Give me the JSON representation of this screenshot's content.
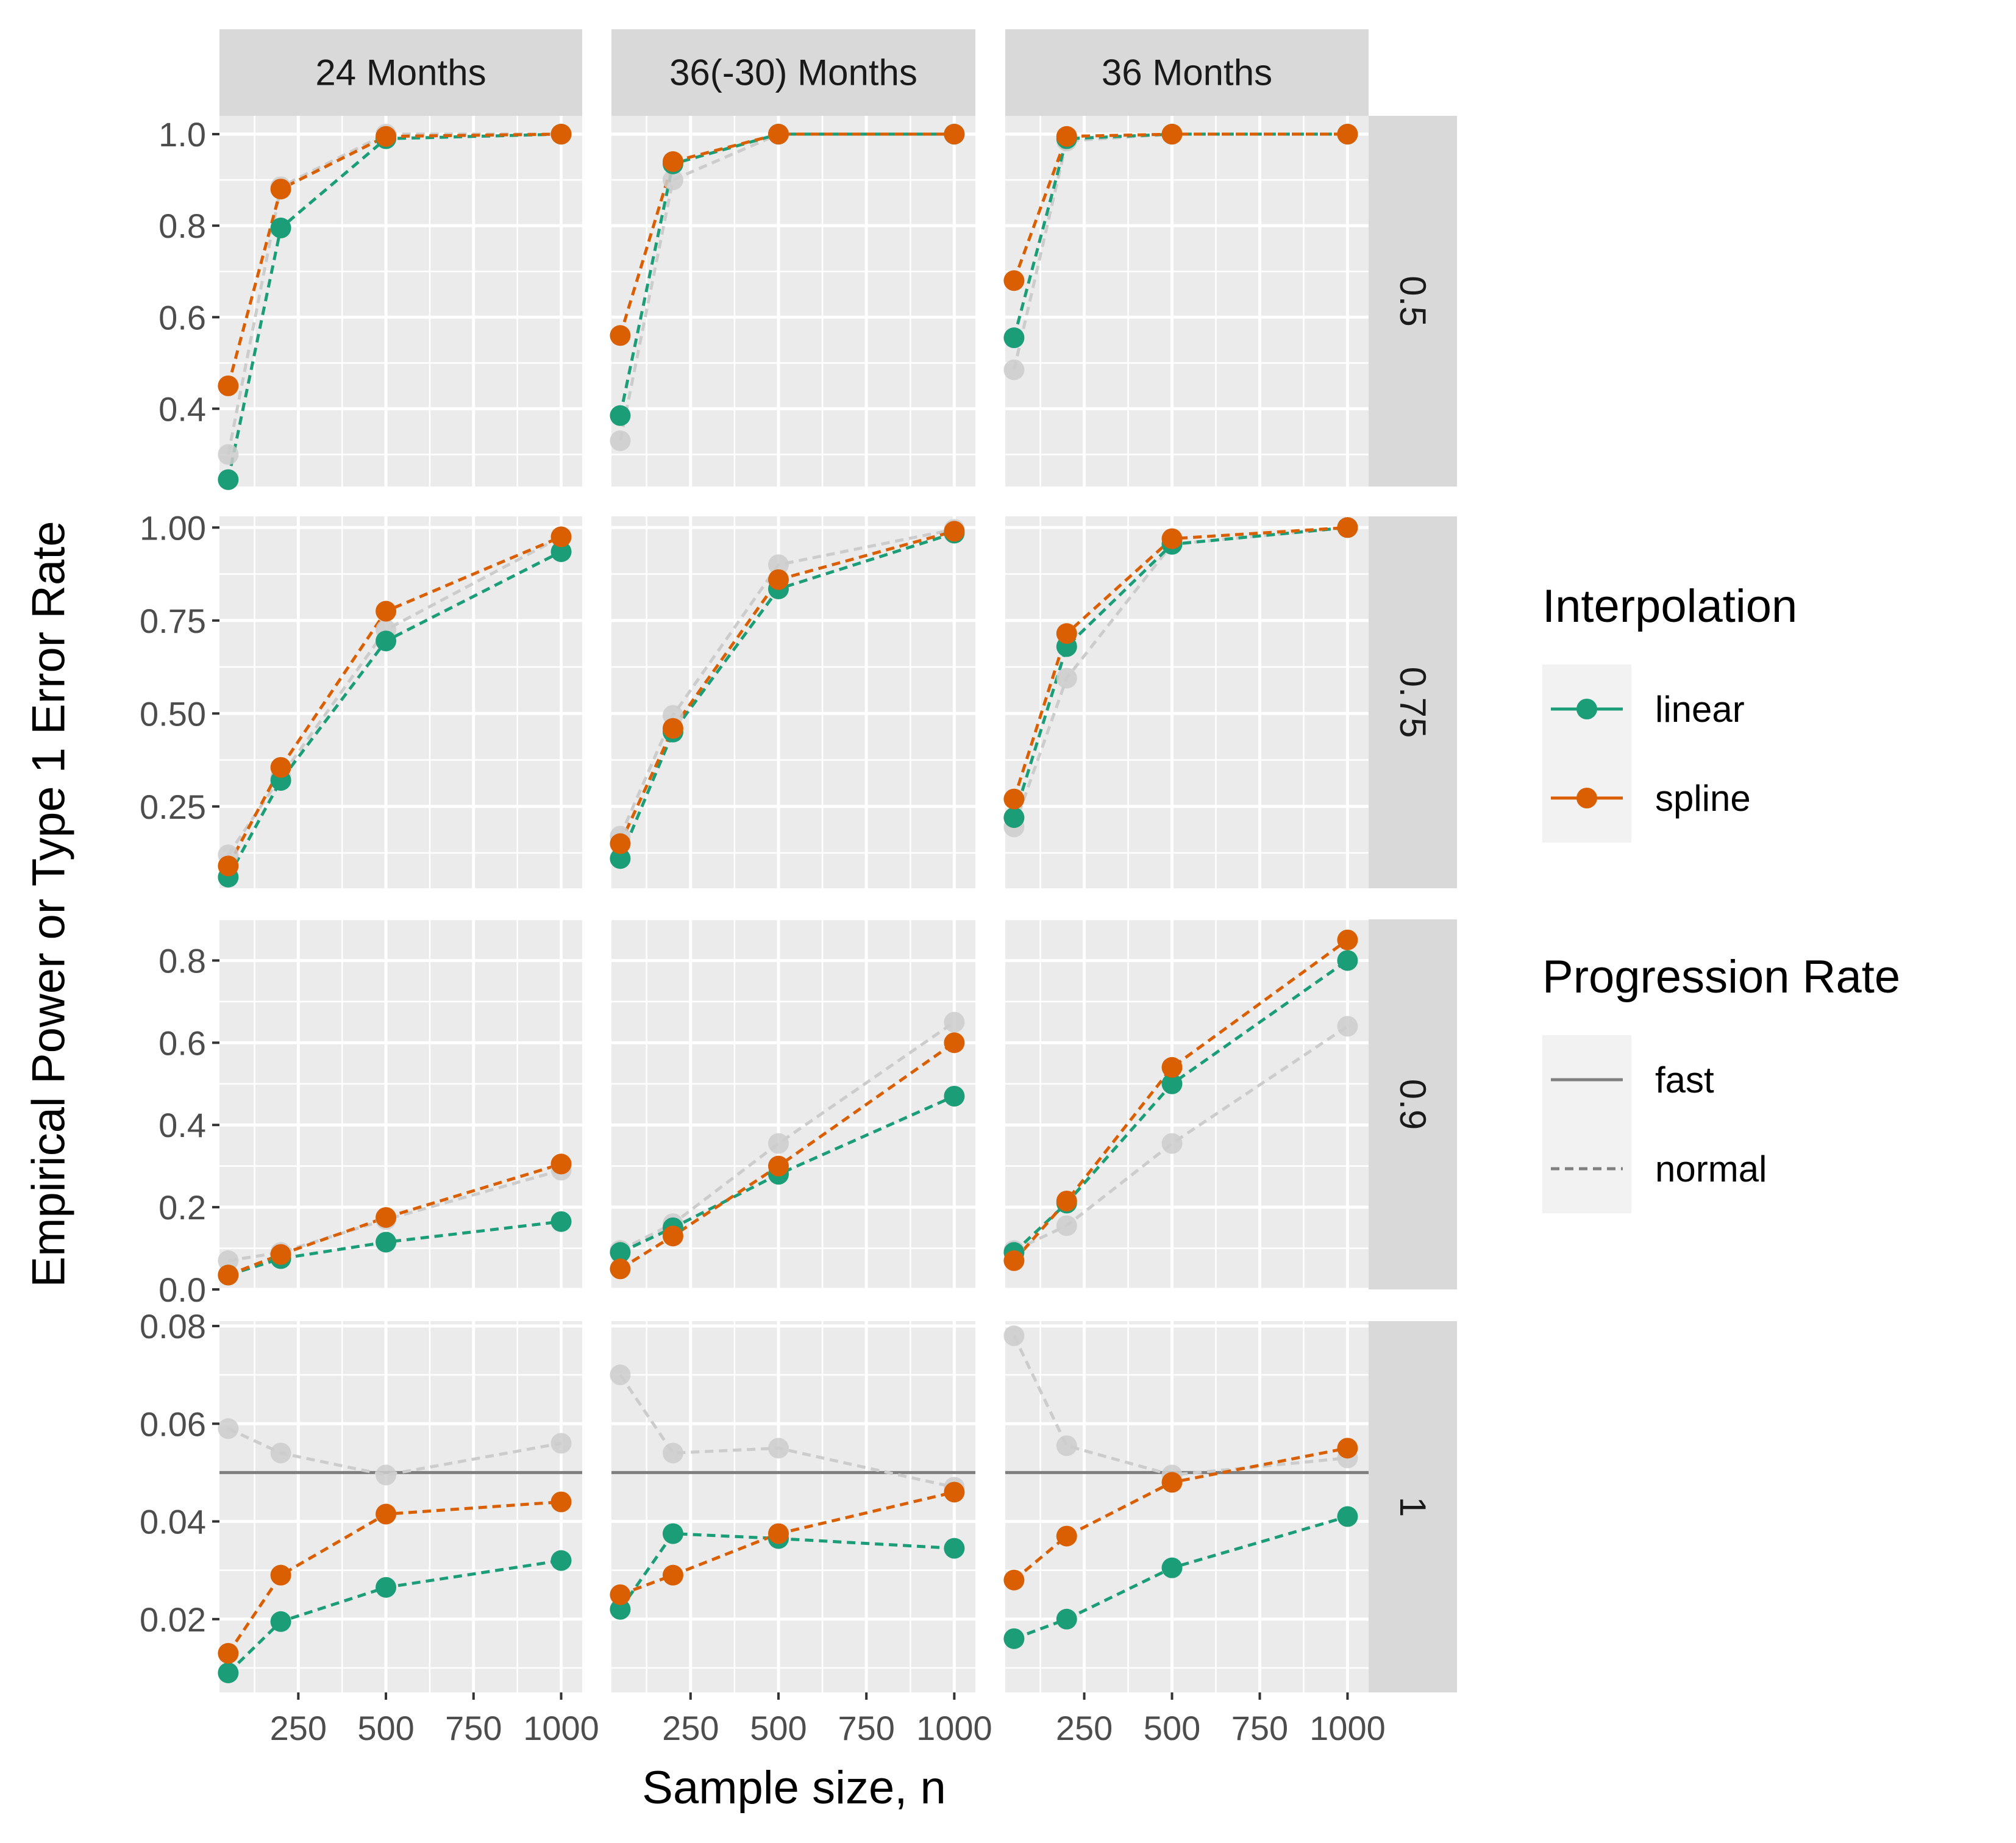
{
  "chart_data": {
    "type": "line",
    "xlabel": "Sample size, n",
    "ylabel": "Empirical Power or Type 1 Error Rate",
    "x_values": [
      50,
      200,
      500,
      1000
    ],
    "x_ticks": [
      250,
      500,
      750,
      1000
    ],
    "x_tick_labels": [
      "250",
      "500",
      "750",
      "1000"
    ],
    "xlim": [
      25,
      1060
    ],
    "grid": true,
    "legend_position": "right",
    "col_facets": [
      "24 Months",
      "36(-30) Months",
      "36 Months"
    ],
    "row_facets": [
      {
        "label": "0.5",
        "ylim": [
          0.23,
          1.04
        ],
        "y_ticks": [
          0.4,
          0.6,
          0.8,
          1.0
        ],
        "y_tick_labels": [
          "0.4",
          "0.6",
          "0.8",
          "1.0"
        ]
      },
      {
        "label": "0.75",
        "ylim": [
          0.03,
          1.03
        ],
        "y_ticks": [
          0.25,
          0.5,
          0.75,
          1.0
        ],
        "y_tick_labels": [
          "0.25",
          "0.50",
          "0.75",
          "1.00"
        ]
      },
      {
        "label": "0.9",
        "ylim": [
          0.0,
          0.9
        ],
        "y_ticks": [
          0.0,
          0.2,
          0.4,
          0.6,
          0.8
        ],
        "y_tick_labels": [
          "0.0",
          "0.2",
          "0.4",
          "0.6",
          "0.8"
        ]
      },
      {
        "label": "1",
        "ylim": [
          0.005,
          0.081
        ],
        "y_ticks": [
          0.02,
          0.04,
          0.06,
          0.08
        ],
        "y_tick_labels": [
          "0.02",
          "0.04",
          "0.06",
          "0.08"
        ]
      }
    ],
    "reference_line": {
      "row": 3,
      "value": 0.05
    },
    "legends": [
      {
        "title": "Interpolation",
        "entries": [
          {
            "label": "linear",
            "color": "#1b9e77",
            "line": "solid",
            "point": true
          },
          {
            "label": "spline",
            "color": "#d95f02",
            "line": "solid",
            "point": true
          }
        ]
      },
      {
        "title": "Progression Rate",
        "entries": [
          {
            "label": "fast",
            "color": "#7f7f7f",
            "line": "solid",
            "point": false
          },
          {
            "label": "normal",
            "color": "#7f7f7f",
            "line": "dashed",
            "point": false
          }
        ]
      }
    ],
    "series": [
      {
        "interpolation": "linear",
        "color": "#1b9e77",
        "line": "dashed",
        "values": [
          [
            [
              0.245,
              0.795,
              0.99,
              1.0
            ],
            [
              0.385,
              0.935,
              1.0,
              1.0
            ],
            [
              0.555,
              0.99,
              1.0,
              1.0
            ]
          ],
          [
            [
              0.06,
              0.32,
              0.695,
              0.935
            ],
            [
              0.11,
              0.45,
              0.835,
              0.985
            ],
            [
              0.22,
              0.68,
              0.955,
              1.0
            ]
          ],
          [
            [
              0.035,
              0.075,
              0.115,
              0.165
            ],
            [
              0.09,
              0.15,
              0.28,
              0.47
            ],
            [
              0.09,
              0.21,
              0.5,
              0.8
            ]
          ],
          [
            [
              0.009,
              0.0195,
              0.0265,
              0.032
            ],
            [
              0.022,
              0.0375,
              0.0365,
              0.0345
            ],
            [
              0.016,
              0.02,
              0.0305,
              0.041
            ]
          ]
        ]
      },
      {
        "interpolation": "spline",
        "color": "#d95f02",
        "line": "dashed",
        "values": [
          [
            [
              0.45,
              0.88,
              0.995,
              1.0
            ],
            [
              0.56,
              0.94,
              1.0,
              1.0
            ],
            [
              0.68,
              0.995,
              1.0,
              1.0
            ]
          ],
          [
            [
              0.09,
              0.355,
              0.775,
              0.975
            ],
            [
              0.15,
              0.46,
              0.86,
              0.99
            ],
            [
              0.27,
              0.715,
              0.97,
              1.0
            ]
          ],
          [
            [
              0.035,
              0.085,
              0.175,
              0.305
            ],
            [
              0.05,
              0.13,
              0.3,
              0.6
            ],
            [
              0.07,
              0.215,
              0.54,
              0.85
            ]
          ],
          [
            [
              0.013,
              0.029,
              0.0415,
              0.044
            ],
            [
              0.025,
              0.029,
              0.0375,
              0.046
            ],
            [
              0.028,
              0.037,
              0.048,
              0.055
            ]
          ]
        ]
      },
      {
        "interpolation": "normal-reference",
        "color": "#cccccc",
        "line": "dashed",
        "values": [
          [
            [
              0.3,
              0.885,
              1.0,
              1.0
            ],
            [
              0.33,
              0.9,
              1.0,
              1.0
            ],
            [
              0.485,
              0.985,
              1.0,
              1.0
            ]
          ],
          [
            [
              0.12,
              0.33,
              0.725,
              0.975
            ],
            [
              0.17,
              0.495,
              0.9,
              0.995
            ],
            [
              0.195,
              0.595,
              0.955,
              1.0
            ]
          ],
          [
            [
              0.07,
              0.09,
              0.17,
              0.29
            ],
            [
              0.095,
              0.16,
              0.355,
              0.65
            ],
            [
              0.095,
              0.155,
              0.355,
              0.64
            ]
          ],
          [
            [
              0.059,
              0.054,
              0.0495,
              0.056
            ],
            [
              0.07,
              0.054,
              0.055,
              0.047
            ],
            [
              0.078,
              0.0555,
              0.0495,
              0.053
            ]
          ]
        ]
      }
    ]
  }
}
